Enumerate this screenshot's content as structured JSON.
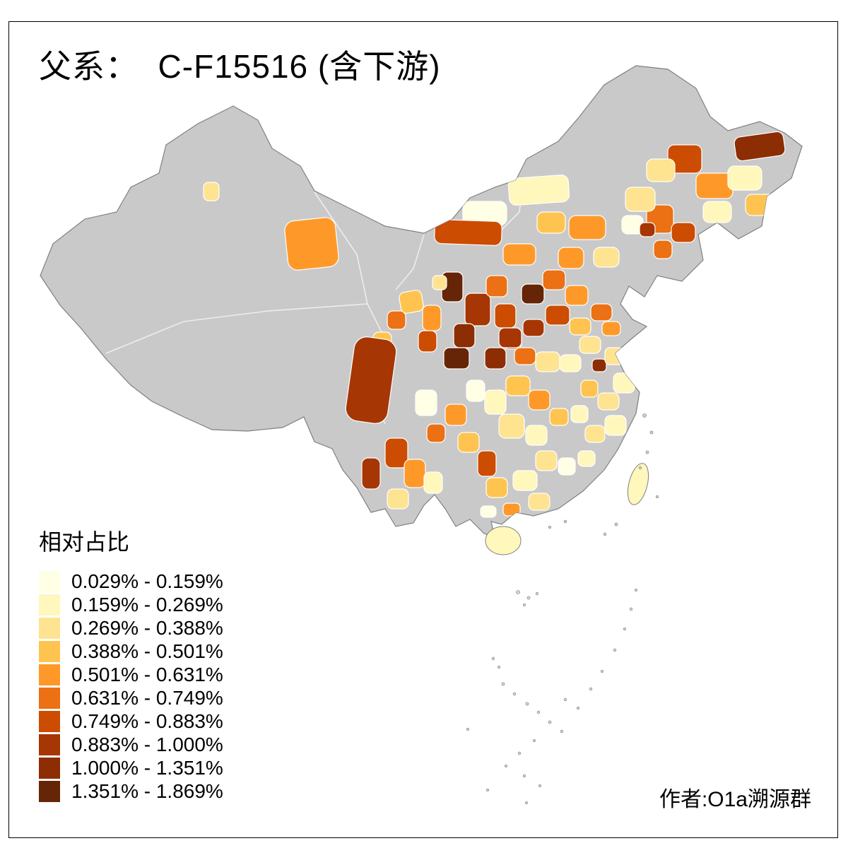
{
  "page": {
    "title": "父系：  C-F15516 (含下游)",
    "attribution": "作者:O1a溯源群"
  },
  "legend": {
    "title": "相对占比",
    "items": [
      {
        "range": "0.029% - 0.159%",
        "color": "#FFFFE5"
      },
      {
        "range": "0.159% - 0.269%",
        "color": "#FFF7BC"
      },
      {
        "range": "0.269% - 0.388%",
        "color": "#FEE391"
      },
      {
        "range": "0.388% - 0.501%",
        "color": "#FEC44F"
      },
      {
        "range": "0.501% - 0.631%",
        "color": "#FE9929"
      },
      {
        "range": "0.631% - 0.749%",
        "color": "#EC7014"
      },
      {
        "range": "0.749% - 0.883%",
        "color": "#CC4C02"
      },
      {
        "range": "0.883% - 1.000%",
        "color": "#A63603"
      },
      {
        "range": "1.000% - 1.351%",
        "color": "#8C2D04"
      },
      {
        "range": "1.351% - 1.869%",
        "color": "#662506"
      }
    ]
  },
  "map": {
    "type": "choropleth",
    "no_data_color": "#C9C9C9",
    "outline_color": "#808080",
    "inner_border_color": "#EDEDED",
    "sea_color": "#FFFFFF"
  }
}
